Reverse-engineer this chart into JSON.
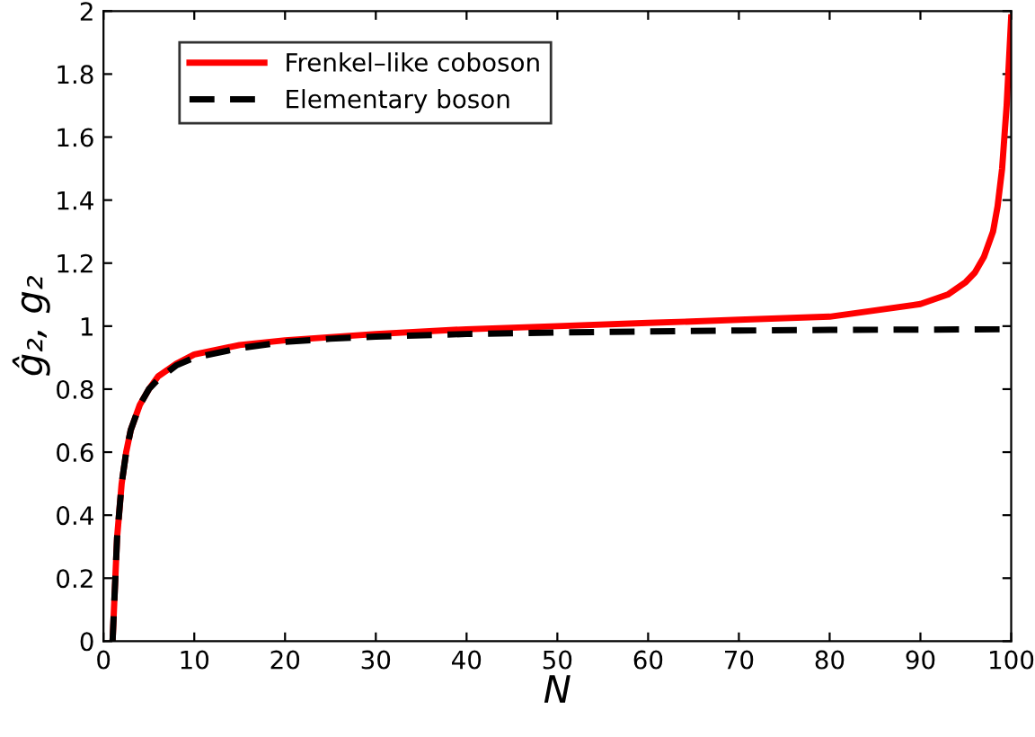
{
  "chart_data": {
    "type": "line",
    "xlabel": "N",
    "ylabel": "ĝ₂, g₂",
    "series": [
      {
        "name": "Frenkel–like coboson",
        "color": "#ff0000",
        "line_style": "solid",
        "x": [
          1,
          1.5,
          2,
          2.5,
          3,
          4,
          5,
          6,
          8,
          10,
          15,
          20,
          25,
          30,
          40,
          50,
          60,
          70,
          80,
          85,
          90,
          93,
          95,
          96,
          97,
          98,
          98.5,
          99,
          99.5,
          100
        ],
        "values": [
          0,
          0.33,
          0.5,
          0.6,
          0.67,
          0.75,
          0.8,
          0.84,
          0.88,
          0.91,
          0.94,
          0.955,
          0.965,
          0.975,
          0.99,
          1.0,
          1.01,
          1.02,
          1.03,
          1.05,
          1.07,
          1.1,
          1.14,
          1.17,
          1.22,
          1.3,
          1.38,
          1.5,
          1.7,
          1.98
        ]
      },
      {
        "name": "Elementary boson",
        "color": "#000000",
        "line_style": "dashed",
        "x": [
          1,
          1.5,
          2,
          2.5,
          3,
          4,
          5,
          6,
          8,
          10,
          15,
          20,
          25,
          30,
          40,
          50,
          60,
          70,
          80,
          90,
          100
        ],
        "values": [
          0,
          0.33,
          0.5,
          0.6,
          0.67,
          0.75,
          0.8,
          0.83,
          0.875,
          0.9,
          0.93,
          0.95,
          0.96,
          0.967,
          0.975,
          0.98,
          0.983,
          0.986,
          0.988,
          0.989,
          0.99
        ]
      }
    ],
    "xlim": [
      0,
      100
    ],
    "ylim": [
      0,
      2
    ],
    "xticks": [
      0,
      10,
      20,
      30,
      40,
      50,
      60,
      70,
      80,
      90,
      100
    ],
    "yticks": [
      0,
      0.2,
      0.4,
      0.6,
      0.8,
      1,
      1.2,
      1.4,
      1.6,
      1.8,
      2
    ],
    "grid": false,
    "legend": "top left",
    "marker": "none"
  }
}
